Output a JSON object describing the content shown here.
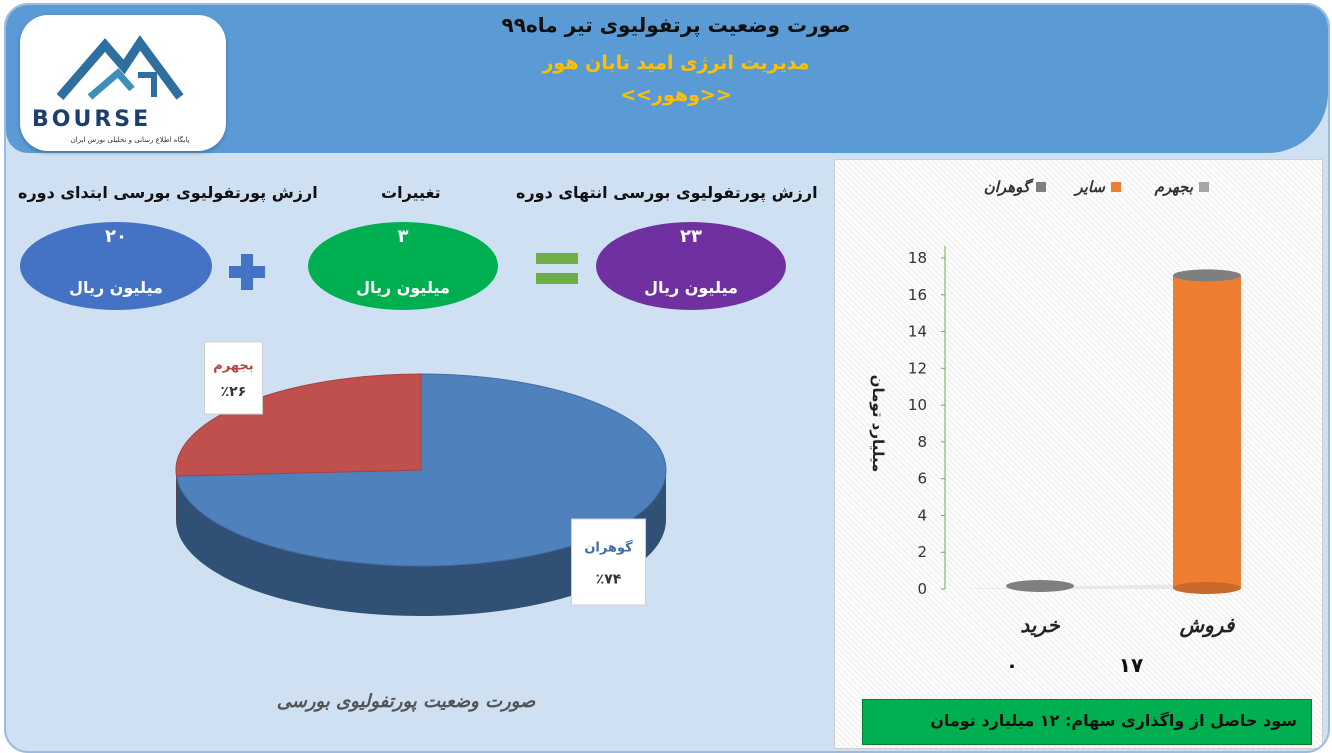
{
  "header": {
    "title": "صورت وضعیت پرتفولیوی تیر ماه۹۹",
    "company": "مدیریت انرژی امید تابان هور",
    "symbol": "<<وهور>>"
  },
  "logo": {
    "text": "BOURSE",
    "tagline": "پایگاه اطلاع رسانی و تحلیلی بورس ایران"
  },
  "summary": {
    "start": {
      "label": "ارزش پورتفولیوی بورسی ابتدای دوره",
      "value": "۲۰",
      "unit": "میلیون ریال",
      "color": "#4472c4"
    },
    "change": {
      "label": "تغییرات",
      "value": "۳",
      "unit": "میلیون ریال",
      "color": "#00b050"
    },
    "end": {
      "label": "ارزش پورتفولیوی بورسی انتهای دوره",
      "value": "۲۳",
      "unit": "میلیون ریال",
      "color": "#7030a0"
    },
    "plus_color": "#4472c4",
    "equals_color": "#70ad47"
  },
  "pie_title": "صورت وضعیت پورتفولیوی بورسی",
  "footer": {
    "text": "سود حاصل از واگذاری سهام: ۱۲ میلیارد تومان"
  },
  "chart_data": [
    {
      "type": "pie",
      "slices": [
        {
          "name": "گوهران",
          "value": 74,
          "label": "٪۷۴",
          "color": "#4f81bd"
        },
        {
          "name": "بجهرم",
          "value": 26,
          "label": "٪۲۶",
          "color": "#c0504d"
        }
      ]
    },
    {
      "type": "bar",
      "categories": [
        "خرید",
        "فروش"
      ],
      "category_values": [
        "۰",
        "۱۷"
      ],
      "series": [
        {
          "name": "بجهرم",
          "color": "#a5a5a5",
          "values": [
            0,
            0
          ]
        },
        {
          "name": "سایر",
          "color": "#ed7d31",
          "values": [
            0,
            17
          ]
        },
        {
          "name": "گوهران",
          "color": "#7f7f7f",
          "values": [
            0,
            0
          ]
        }
      ],
      "ylabel": "میلیارد تومان",
      "ylim": [
        0,
        18
      ],
      "yticks": [
        "0",
        "2",
        "4",
        "6",
        "8",
        "10",
        "12",
        "14",
        "16",
        "18"
      ],
      "legend_position": "top"
    }
  ]
}
